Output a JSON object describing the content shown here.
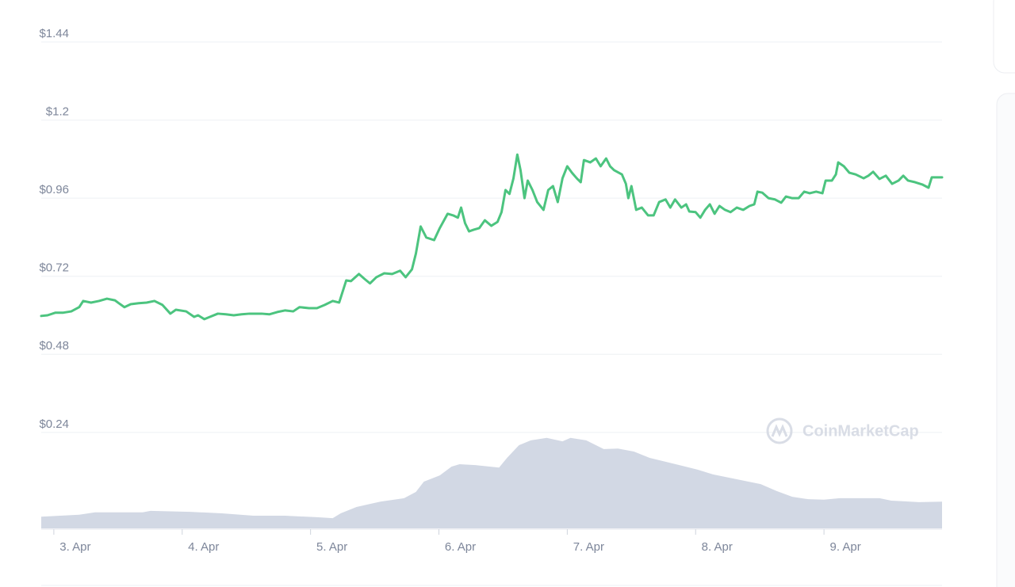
{
  "chart_data": {
    "type": "line",
    "watermark": "CoinMarketCap",
    "ylim": [
      -0.055,
      1.44
    ],
    "yticks": [
      {
        "value": 0.24,
        "label": "$0.24"
      },
      {
        "value": 0.48,
        "label": "$0.48"
      },
      {
        "value": 0.72,
        "label": "$0.72"
      },
      {
        "value": 0.96,
        "label": "$0.96"
      },
      {
        "value": 1.2,
        "label": "$1.2"
      },
      {
        "value": 1.44,
        "label": "$1.44"
      }
    ],
    "xlim": [
      2.735,
      9.753
    ],
    "xticks": [
      {
        "value": 3,
        "label": "3. Apr"
      },
      {
        "value": 4,
        "label": "4. Apr"
      },
      {
        "value": 5,
        "label": "5. Apr"
      },
      {
        "value": 6,
        "label": "6. Apr"
      },
      {
        "value": 7,
        "label": "7. Apr"
      },
      {
        "value": 8,
        "label": "8. Apr"
      },
      {
        "value": 9,
        "label": "9. Apr"
      }
    ],
    "y2lim": [
      0,
      1
    ],
    "grid": true,
    "price": {
      "color": "#4cc47f",
      "x": [
        2.735,
        2.784,
        2.846,
        2.907,
        2.969,
        3.031,
        3.062,
        3.123,
        3.185,
        3.247,
        3.309,
        3.34,
        3.383,
        3.432,
        3.494,
        3.556,
        3.617,
        3.679,
        3.741,
        3.784,
        3.864,
        3.926,
        3.957,
        4.006,
        4.049,
        4.111,
        4.173,
        4.235,
        4.296,
        4.358,
        4.451,
        4.512,
        4.574,
        4.636,
        4.698,
        4.747,
        4.821,
        4.883,
        4.944,
        5.006,
        5.056,
        5.111,
        5.148,
        5.21,
        5.253,
        5.296,
        5.346,
        5.407,
        5.469,
        5.531,
        5.574,
        5.623,
        5.654,
        5.691,
        5.735,
        5.796,
        5.84,
        5.901,
        5.944,
        5.981,
        6.006,
        6.037,
        6.068,
        6.105,
        6.148,
        6.191,
        6.241,
        6.29,
        6.321,
        6.352,
        6.383,
        6.414,
        6.444,
        6.469,
        6.5,
        6.525,
        6.562,
        6.599,
        6.648,
        6.685,
        6.722,
        6.759,
        6.796,
        6.833,
        6.87,
        6.907,
        6.938,
        6.963,
        7.012,
        7.056,
        7.093,
        7.136,
        7.167,
        7.198,
        7.259,
        7.29,
        7.309,
        7.333,
        7.37,
        7.414,
        7.463,
        7.506,
        7.549,
        7.599,
        7.636,
        7.673,
        7.722,
        7.759,
        7.784,
        7.833,
        7.87,
        7.907,
        7.944,
        7.981,
        8.019,
        8.062,
        8.105,
        8.154,
        8.204,
        8.253,
        8.29,
        8.315,
        8.352,
        8.401,
        8.451,
        8.5,
        8.537,
        8.586,
        8.636,
        8.679,
        8.722,
        8.772,
        8.821,
        8.846,
        8.895,
        8.926,
        8.944,
        8.988,
        9.031,
        9.08,
        9.142,
        9.179,
        9.216,
        9.265,
        9.315,
        9.364,
        9.414,
        9.451,
        9.488,
        9.543,
        9.599,
        9.648,
        9.673,
        9.698,
        9.753
      ],
      "values": [
        0.598,
        0.6,
        0.608,
        0.608,
        0.612,
        0.625,
        0.644,
        0.639,
        0.644,
        0.651,
        0.646,
        0.637,
        0.625,
        0.634,
        0.637,
        0.639,
        0.644,
        0.632,
        0.605,
        0.617,
        0.612,
        0.595,
        0.6,
        0.588,
        0.595,
        0.605,
        0.603,
        0.6,
        0.603,
        0.605,
        0.605,
        0.603,
        0.61,
        0.615,
        0.612,
        0.625,
        0.622,
        0.622,
        0.632,
        0.644,
        0.639,
        0.707,
        0.705,
        0.727,
        0.712,
        0.698,
        0.717,
        0.729,
        0.727,
        0.737,
        0.717,
        0.741,
        0.79,
        0.873,
        0.839,
        0.831,
        0.868,
        0.912,
        0.907,
        0.9,
        0.931,
        0.883,
        0.858,
        0.863,
        0.868,
        0.892,
        0.875,
        0.887,
        0.917,
        0.985,
        0.973,
        1.021,
        1.094,
        1.046,
        0.96,
        1.014,
        0.985,
        0.948,
        0.924,
        0.985,
        0.997,
        0.948,
        1.021,
        1.058,
        1.038,
        1.021,
        1.009,
        1.077,
        1.07,
        1.082,
        1.058,
        1.082,
        1.058,
        1.046,
        1.033,
        1.004,
        0.96,
        0.997,
        0.924,
        0.931,
        0.907,
        0.907,
        0.948,
        0.956,
        0.931,
        0.956,
        0.931,
        0.941,
        0.919,
        0.917,
        0.9,
        0.924,
        0.941,
        0.912,
        0.936,
        0.924,
        0.917,
        0.931,
        0.924,
        0.936,
        0.941,
        0.98,
        0.977,
        0.96,
        0.956,
        0.946,
        0.965,
        0.96,
        0.96,
        0.98,
        0.975,
        0.98,
        0.975,
        1.014,
        1.014,
        1.033,
        1.07,
        1.058,
        1.038,
        1.033,
        1.021,
        1.029,
        1.041,
        1.019,
        1.029,
        1.004,
        1.014,
        1.029,
        1.014,
        1.009,
        1.002,
        0.992,
        1.024,
        1.024,
        1.024
      ]
    },
    "volume": {
      "color": "#d2d8e4",
      "axis": "y2",
      "x": [
        2.735,
        3.031,
        3.154,
        3.525,
        3.586,
        3.895,
        4.142,
        4.389,
        4.636,
        4.883,
        5.006,
        5.068,
        5.191,
        5.377,
        5.562,
        5.654,
        5.716,
        5.84,
        5.932,
        5.994,
        6.117,
        6.302,
        6.364,
        6.457,
        6.549,
        6.673,
        6.796,
        6.858,
        6.981,
        7.117,
        7.228,
        7.352,
        7.475,
        7.599,
        7.722,
        7.846,
        7.969,
        8.154,
        8.34,
        8.463,
        8.586,
        8.71,
        8.833,
        8.957,
        9.265,
        9.358,
        9.574,
        9.753
      ],
      "values": [
        0.024,
        0.028,
        0.033,
        0.033,
        0.036,
        0.034,
        0.031,
        0.026,
        0.026,
        0.023,
        0.021,
        0.031,
        0.044,
        0.055,
        0.062,
        0.075,
        0.096,
        0.109,
        0.127,
        0.132,
        0.13,
        0.125,
        0.145,
        0.171,
        0.181,
        0.186,
        0.179,
        0.186,
        0.181,
        0.163,
        0.164,
        0.158,
        0.145,
        0.137,
        0.129,
        0.121,
        0.111,
        0.101,
        0.091,
        0.077,
        0.065,
        0.06,
        0.059,
        0.062,
        0.062,
        0.057,
        0.054,
        0.055
      ]
    }
  }
}
